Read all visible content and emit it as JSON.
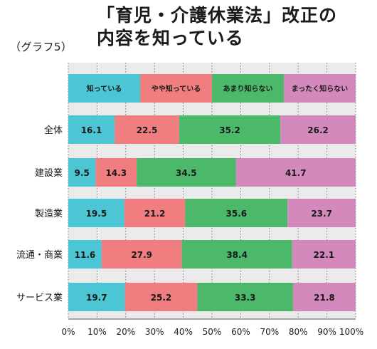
{
  "graph_label": "（グラフ5）",
  "title_line1": "「育児・介護休業法」改正の",
  "title_line2": "内容を知っている",
  "chart_data": {
    "type": "bar",
    "orientation": "horizontal",
    "stacked": true,
    "legend_placement": "top-inside-bar",
    "categories": [
      "全体",
      "建設業",
      "製造業",
      "流通・商業",
      "サービス業"
    ],
    "series": [
      {
        "name": "知っている",
        "values": [
          16.1,
          9.5,
          19.5,
          11.6,
          19.7
        ],
        "color": "#4cc6d4"
      },
      {
        "name": "やや知っている",
        "values": [
          22.5,
          14.3,
          21.2,
          27.9,
          25.2
        ],
        "color": "#f07d80"
      },
      {
        "name": "あまり知らない",
        "values": [
          35.2,
          34.5,
          35.6,
          38.4,
          33.3
        ],
        "color": "#4cb86a"
      },
      {
        "name": "まったく知らない",
        "values": [
          26.2,
          41.7,
          23.7,
          22.1,
          21.8
        ],
        "color": "#d489bc"
      }
    ],
    "legend_widths": [
      25,
      25,
      25,
      25
    ],
    "x_ticks": [
      "0%",
      "10%",
      "20%",
      "30%",
      "40%",
      "50%",
      "60%",
      "70%",
      "80%",
      "90%",
      "100%"
    ],
    "xlim": [
      0,
      100
    ],
    "grid": true
  }
}
